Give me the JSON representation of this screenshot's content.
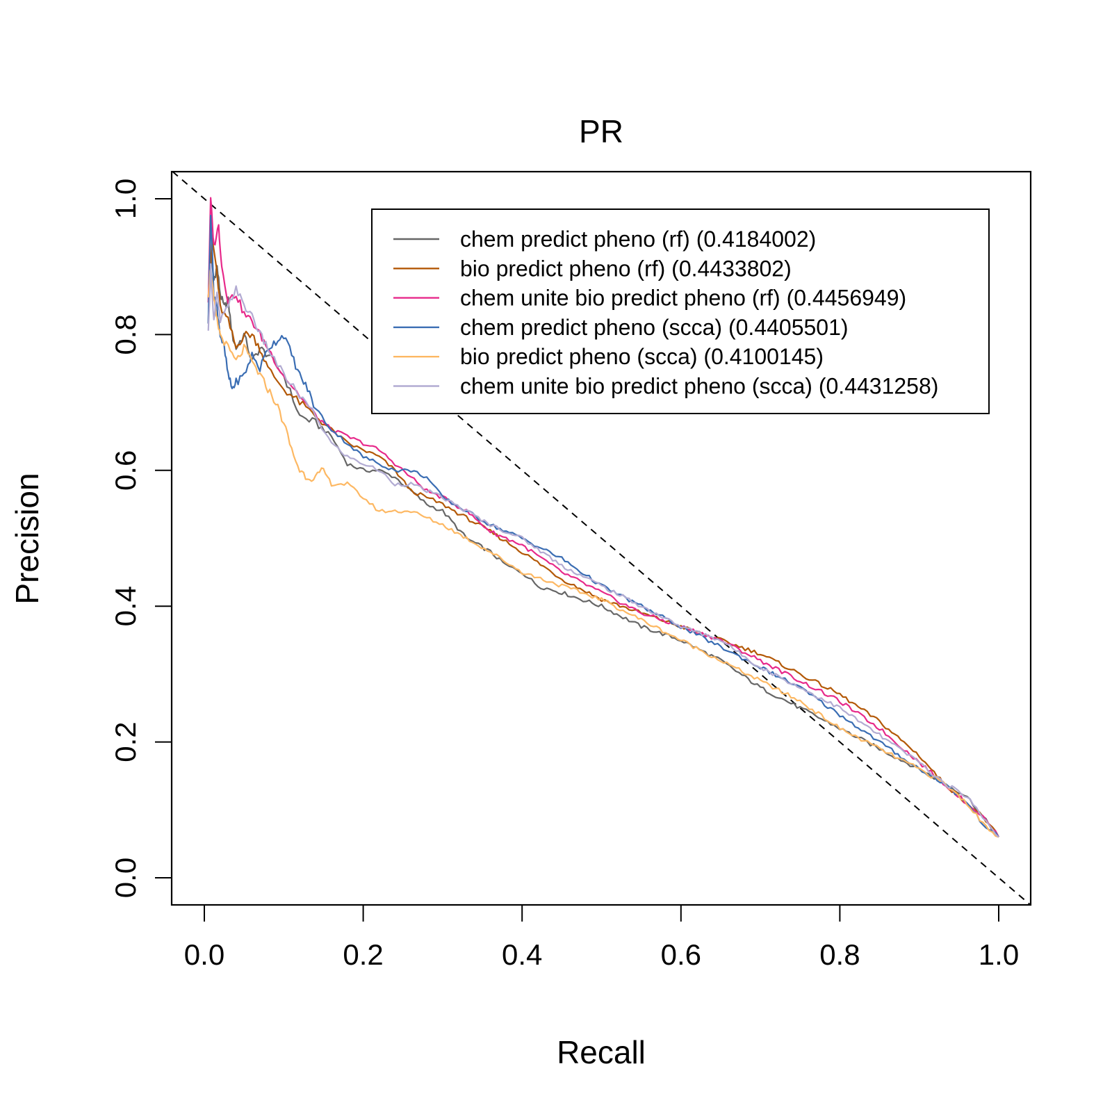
{
  "chart_data": {
    "type": "line",
    "title": "PR",
    "xlabel": "Recall",
    "ylabel": "Precision",
    "xlim": [
      0,
      1
    ],
    "ylim": [
      0,
      1
    ],
    "x_ticks": [
      "0.0",
      "0.2",
      "0.4",
      "0.6",
      "0.8",
      "1.0"
    ],
    "y_ticks": [
      "0.0",
      "0.2",
      "0.4",
      "0.6",
      "0.8",
      "1.0"
    ],
    "grid": false,
    "legend_position": "top-right",
    "reference_line": {
      "style": "dashed",
      "color": "#000000",
      "x": [
        -0.04,
        1.04
      ],
      "y": [
        1.04,
        -0.04
      ]
    },
    "series": [
      {
        "name": "chem predict pheno (rf) (0.4184002)",
        "color": "#666666",
        "x": [
          0.005,
          0.008,
          0.012,
          0.016,
          0.02,
          0.025,
          0.03,
          0.035,
          0.04,
          0.05,
          0.06,
          0.07,
          0.08,
          0.1,
          0.12,
          0.14,
          0.16,
          0.18,
          0.2,
          0.22,
          0.24,
          0.26,
          0.28,
          0.3,
          0.33,
          0.36,
          0.38,
          0.4,
          0.42,
          0.45,
          0.5,
          0.55,
          0.6,
          0.65,
          0.7,
          0.75,
          0.8,
          0.85,
          0.9,
          0.93,
          0.96,
          0.98,
          1.0
        ],
        "y": [
          0.82,
          0.92,
          0.88,
          0.9,
          0.86,
          0.84,
          0.85,
          0.8,
          0.78,
          0.8,
          0.76,
          0.78,
          0.77,
          0.74,
          0.68,
          0.67,
          0.65,
          0.61,
          0.6,
          0.6,
          0.59,
          0.57,
          0.55,
          0.54,
          0.5,
          0.48,
          0.46,
          0.45,
          0.43,
          0.42,
          0.4,
          0.37,
          0.35,
          0.32,
          0.28,
          0.25,
          0.22,
          0.19,
          0.16,
          0.14,
          0.12,
          0.09,
          0.06
        ]
      },
      {
        "name": "bio predict pheno (rf) (0.4433802)",
        "color": "#B35806",
        "x": [
          0.005,
          0.01,
          0.015,
          0.02,
          0.03,
          0.04,
          0.05,
          0.06,
          0.07,
          0.08,
          0.1,
          0.12,
          0.14,
          0.16,
          0.18,
          0.2,
          0.22,
          0.24,
          0.26,
          0.28,
          0.3,
          0.33,
          0.36,
          0.4,
          0.45,
          0.5,
          0.55,
          0.6,
          0.65,
          0.7,
          0.75,
          0.8,
          0.85,
          0.9,
          0.93,
          0.96,
          0.98,
          1.0
        ],
        "y": [
          0.86,
          0.94,
          0.9,
          0.84,
          0.82,
          0.78,
          0.8,
          0.8,
          0.78,
          0.75,
          0.72,
          0.7,
          0.68,
          0.66,
          0.64,
          0.63,
          0.62,
          0.6,
          0.57,
          0.56,
          0.55,
          0.53,
          0.51,
          0.48,
          0.44,
          0.41,
          0.39,
          0.37,
          0.35,
          0.33,
          0.3,
          0.27,
          0.23,
          0.18,
          0.14,
          0.11,
          0.09,
          0.06
        ]
      },
      {
        "name": "chem unite bio predict pheno (rf) (0.4456949)",
        "color": "#E7298A",
        "x": [
          0.005,
          0.008,
          0.012,
          0.018,
          0.022,
          0.03,
          0.04,
          0.05,
          0.06,
          0.07,
          0.08,
          0.1,
          0.12,
          0.14,
          0.16,
          0.18,
          0.2,
          0.22,
          0.24,
          0.26,
          0.28,
          0.3,
          0.33,
          0.36,
          0.4,
          0.45,
          0.5,
          0.55,
          0.6,
          0.65,
          0.7,
          0.75,
          0.8,
          0.85,
          0.9,
          0.93,
          0.96,
          0.98,
          1.0
        ],
        "y": [
          0.85,
          1.0,
          0.93,
          0.96,
          0.9,
          0.85,
          0.86,
          0.83,
          0.82,
          0.8,
          0.78,
          0.74,
          0.71,
          0.68,
          0.66,
          0.65,
          0.64,
          0.63,
          0.61,
          0.59,
          0.57,
          0.56,
          0.54,
          0.51,
          0.49,
          0.45,
          0.42,
          0.39,
          0.37,
          0.35,
          0.32,
          0.29,
          0.26,
          0.22,
          0.17,
          0.14,
          0.11,
          0.09,
          0.06
        ]
      },
      {
        "name": "chem predict pheno (scca) (0.4405501)",
        "color": "#3A6DB3",
        "x": [
          0.005,
          0.008,
          0.012,
          0.016,
          0.02,
          0.025,
          0.03,
          0.035,
          0.04,
          0.05,
          0.06,
          0.07,
          0.08,
          0.09,
          0.1,
          0.11,
          0.12,
          0.13,
          0.14,
          0.16,
          0.18,
          0.2,
          0.22,
          0.24,
          0.26,
          0.28,
          0.3,
          0.33,
          0.36,
          0.4,
          0.45,
          0.5,
          0.55,
          0.6,
          0.65,
          0.7,
          0.75,
          0.8,
          0.85,
          0.9,
          0.93,
          0.96,
          0.98,
          1.0
        ],
        "y": [
          0.82,
          0.98,
          0.86,
          0.84,
          0.8,
          0.78,
          0.74,
          0.72,
          0.73,
          0.74,
          0.77,
          0.75,
          0.78,
          0.79,
          0.8,
          0.77,
          0.74,
          0.72,
          0.69,
          0.66,
          0.64,
          0.62,
          0.61,
          0.6,
          0.6,
          0.59,
          0.56,
          0.54,
          0.52,
          0.5,
          0.47,
          0.43,
          0.4,
          0.37,
          0.34,
          0.31,
          0.28,
          0.24,
          0.2,
          0.16,
          0.14,
          0.11,
          0.08,
          0.06
        ]
      },
      {
        "name": "bio predict pheno (scca) (0.4100145)",
        "color": "#FDB863",
        "x": [
          0.005,
          0.008,
          0.012,
          0.016,
          0.02,
          0.03,
          0.04,
          0.05,
          0.06,
          0.07,
          0.08,
          0.09,
          0.1,
          0.11,
          0.12,
          0.13,
          0.14,
          0.15,
          0.16,
          0.18,
          0.2,
          0.22,
          0.24,
          0.26,
          0.28,
          0.3,
          0.33,
          0.36,
          0.4,
          0.45,
          0.5,
          0.55,
          0.6,
          0.65,
          0.7,
          0.75,
          0.8,
          0.85,
          0.9,
          0.93,
          0.96,
          0.98,
          1.0
        ],
        "y": [
          0.86,
          0.9,
          0.85,
          0.82,
          0.8,
          0.78,
          0.76,
          0.78,
          0.76,
          0.74,
          0.72,
          0.7,
          0.67,
          0.63,
          0.6,
          0.59,
          0.59,
          0.6,
          0.58,
          0.58,
          0.56,
          0.54,
          0.54,
          0.54,
          0.53,
          0.52,
          0.5,
          0.48,
          0.45,
          0.43,
          0.41,
          0.38,
          0.35,
          0.32,
          0.29,
          0.26,
          0.22,
          0.19,
          0.16,
          0.14,
          0.11,
          0.08,
          0.06
        ]
      },
      {
        "name": "chem unite bio predict pheno (scca) (0.4431258)",
        "color": "#B2ABD2",
        "x": [
          0.005,
          0.008,
          0.012,
          0.016,
          0.02,
          0.03,
          0.04,
          0.05,
          0.06,
          0.07,
          0.08,
          0.1,
          0.12,
          0.14,
          0.16,
          0.18,
          0.2,
          0.22,
          0.24,
          0.26,
          0.28,
          0.3,
          0.33,
          0.36,
          0.4,
          0.45,
          0.5,
          0.55,
          0.6,
          0.65,
          0.7,
          0.75,
          0.8,
          0.85,
          0.9,
          0.93,
          0.96,
          0.98,
          1.0
        ],
        "y": [
          0.8,
          0.9,
          0.82,
          0.86,
          0.82,
          0.84,
          0.87,
          0.84,
          0.83,
          0.8,
          0.78,
          0.74,
          0.71,
          0.68,
          0.64,
          0.62,
          0.61,
          0.6,
          0.58,
          0.58,
          0.57,
          0.56,
          0.54,
          0.52,
          0.5,
          0.46,
          0.43,
          0.4,
          0.37,
          0.35,
          0.31,
          0.28,
          0.25,
          0.21,
          0.17,
          0.14,
          0.12,
          0.09,
          0.06
        ]
      }
    ]
  }
}
